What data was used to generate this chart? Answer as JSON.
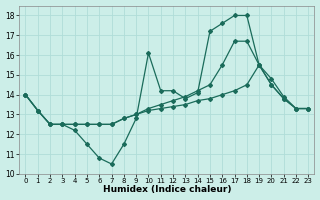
{
  "xlabel": "Humidex (Indice chaleur)",
  "xlim": [
    -0.5,
    23.5
  ],
  "ylim": [
    10,
    18.5
  ],
  "yticks": [
    10,
    11,
    12,
    13,
    14,
    15,
    16,
    17,
    18
  ],
  "xticks": [
    0,
    1,
    2,
    3,
    4,
    5,
    6,
    7,
    8,
    9,
    10,
    11,
    12,
    13,
    14,
    15,
    16,
    17,
    18,
    19,
    20,
    21,
    22,
    23
  ],
  "bg_color": "#cceee8",
  "grid_color": "#b0ddd8",
  "line_color": "#1a6b5a",
  "lines": [
    {
      "x": [
        0,
        1,
        2,
        3,
        4,
        5,
        6,
        7,
        8,
        9,
        10,
        11,
        12,
        13,
        14,
        15,
        16,
        17,
        18,
        19,
        20,
        21,
        22,
        23
      ],
      "y": [
        14.0,
        13.2,
        12.5,
        12.5,
        12.2,
        11.5,
        10.8,
        10.5,
        11.5,
        12.8,
        16.1,
        14.2,
        14.2,
        13.8,
        14.1,
        17.2,
        17.6,
        18.0,
        18.0,
        15.5,
        14.8,
        13.9,
        13.3,
        13.3
      ]
    },
    {
      "x": [
        0,
        1,
        2,
        3,
        4,
        5,
        6,
        7,
        8,
        9,
        10,
        11,
        12,
        13,
        14,
        15,
        16,
        17,
        18,
        19,
        20,
        21,
        22,
        23
      ],
      "y": [
        14.0,
        13.2,
        12.5,
        12.5,
        12.5,
        12.5,
        12.5,
        12.5,
        12.8,
        13.0,
        13.3,
        13.5,
        13.7,
        13.9,
        14.2,
        14.5,
        15.5,
        16.7,
        16.7,
        15.5,
        14.5,
        13.8,
        13.3,
        13.3
      ]
    },
    {
      "x": [
        0,
        1,
        2,
        3,
        4,
        5,
        6,
        7,
        8,
        9,
        10,
        11,
        12,
        13,
        14,
        15,
        16,
        17,
        18,
        19,
        20,
        21,
        22,
        23
      ],
      "y": [
        14.0,
        13.2,
        12.5,
        12.5,
        12.5,
        12.5,
        12.5,
        12.5,
        12.8,
        13.0,
        13.2,
        13.3,
        13.4,
        13.5,
        13.7,
        13.8,
        14.0,
        14.2,
        14.5,
        15.5,
        14.5,
        13.8,
        13.3,
        13.3
      ]
    }
  ]
}
